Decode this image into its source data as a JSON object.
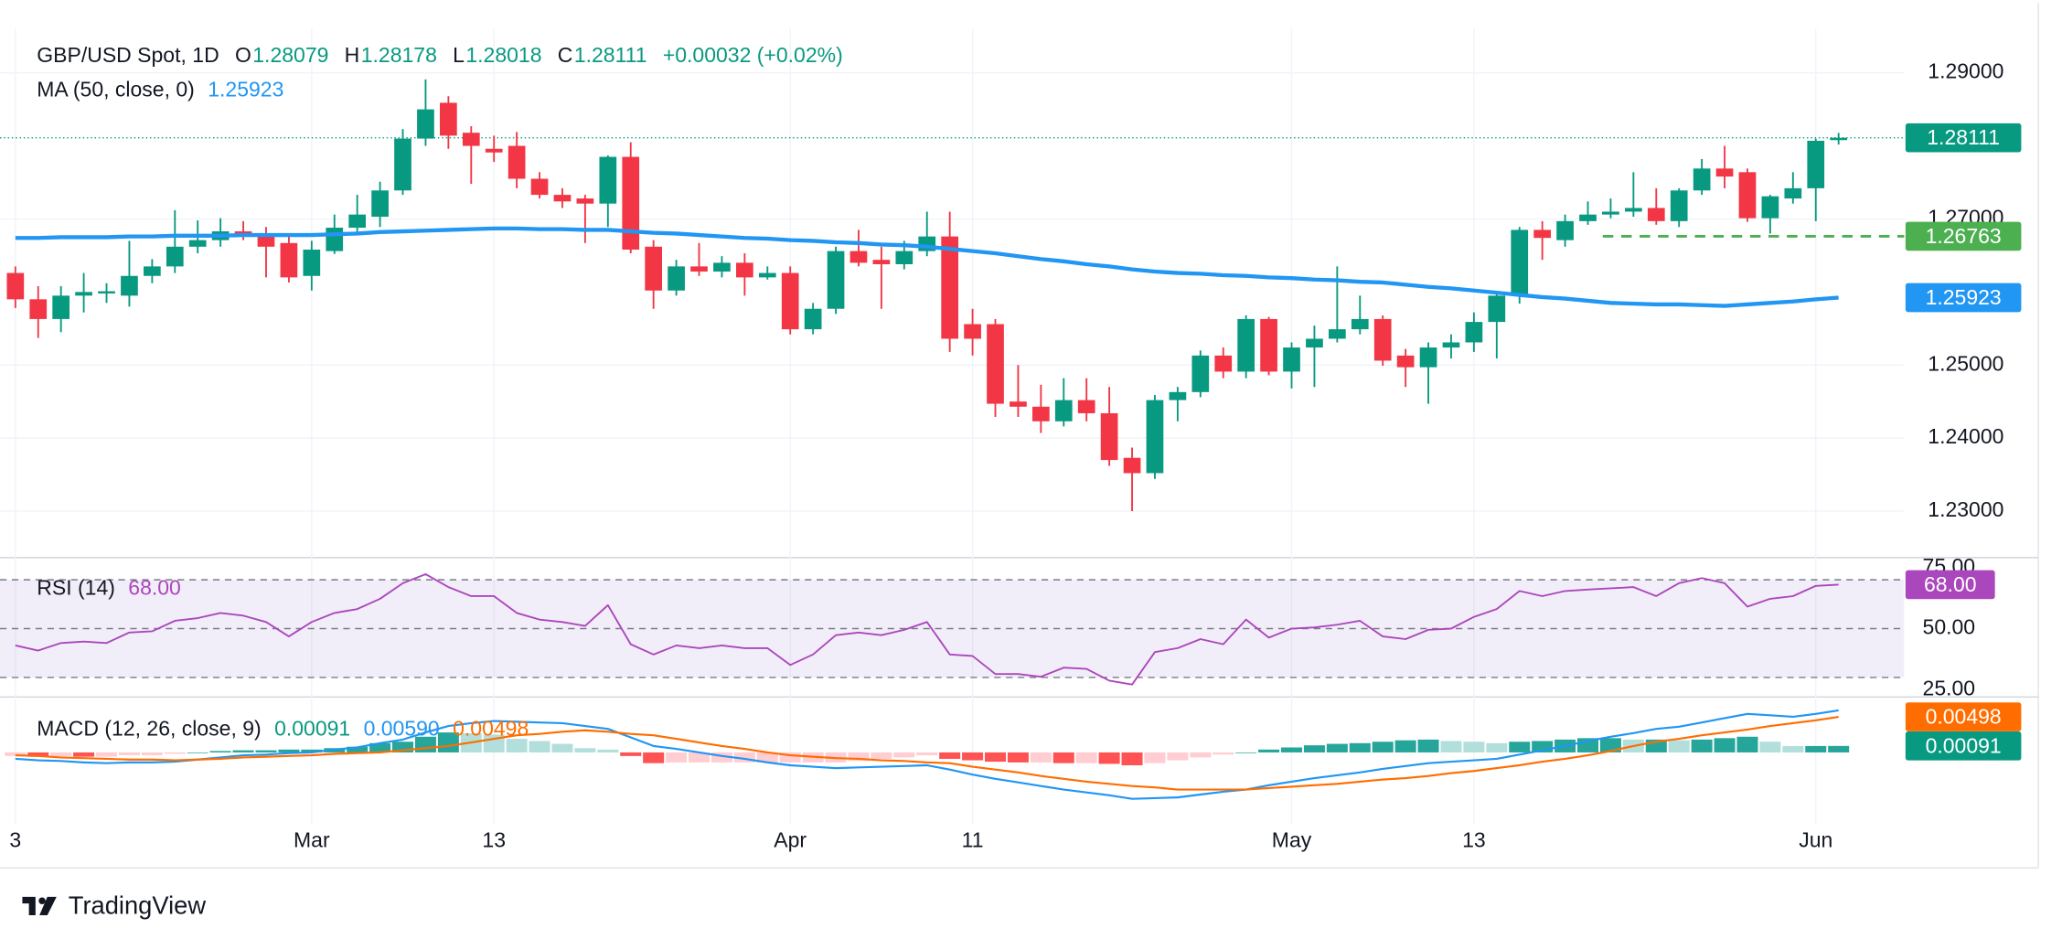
{
  "brand": "TradingView",
  "chart_data": [
    {
      "type": "candlestick",
      "title": "GBP/USD Spot, 1D",
      "ohlc_header": [
        [
          "O",
          "1.28079"
        ],
        [
          "H",
          "1.28178"
        ],
        [
          "L",
          "1.28018"
        ],
        [
          "C",
          "1.28111"
        ]
      ],
      "change": "+0.00032 (+0.02%)",
      "up_color": "#089981",
      "down_color": "#f23645",
      "categories": [
        "3",
        null,
        null,
        null,
        null,
        null,
        null,
        null,
        null,
        null,
        null,
        null,
        null,
        "Mar",
        null,
        null,
        null,
        null,
        null,
        null,
        null,
        "13",
        null,
        null,
        null,
        null,
        null,
        null,
        null,
        null,
        null,
        null,
        null,
        null,
        "Apr",
        null,
        null,
        null,
        null,
        null,
        null,
        null,
        "11",
        null,
        null,
        null,
        null,
        null,
        null,
        null,
        null,
        null,
        null,
        null,
        null,
        null,
        "May",
        null,
        null,
        null,
        null,
        null,
        null,
        null,
        "13",
        null,
        null,
        null,
        null,
        null,
        null,
        null,
        null,
        null,
        null,
        null,
        null,
        null,
        null,
        "Jun",
        null
      ],
      "ohlc": [
        [
          1.2626,
          1.2635,
          1.2578,
          1.259
        ],
        [
          1.259,
          1.2608,
          1.2537,
          1.2563
        ],
        [
          1.2563,
          1.2608,
          1.2545,
          1.2595
        ],
        [
          1.2595,
          1.2626,
          1.2572,
          1.26
        ],
        [
          1.2598,
          1.2612,
          1.2585,
          1.2601
        ],
        [
          1.2595,
          1.267,
          1.258,
          1.2622
        ],
        [
          1.2622,
          1.2645,
          1.2612,
          1.2635
        ],
        [
          1.2635,
          1.2712,
          1.2626,
          1.2662
        ],
        [
          1.2662,
          1.2698,
          1.2653,
          1.2671
        ],
        [
          1.2671,
          1.2701,
          1.2662,
          1.2683
        ],
        [
          1.2683,
          1.2697,
          1.2671,
          1.2676
        ],
        [
          1.268,
          1.2689,
          1.262,
          1.2662
        ],
        [
          1.2667,
          1.268,
          1.2613,
          1.262
        ],
        [
          1.2622,
          1.267,
          1.2602,
          1.2658
        ],
        [
          1.2656,
          1.2706,
          1.2652,
          1.2688
        ],
        [
          1.2688,
          1.2733,
          1.268,
          1.2706
        ],
        [
          1.2703,
          1.2751,
          1.2689,
          1.2739
        ],
        [
          1.2739,
          1.2823,
          1.2733,
          1.281
        ],
        [
          1.281,
          1.2891,
          1.28,
          1.285
        ],
        [
          1.2859,
          1.2868,
          1.2796,
          1.2814
        ],
        [
          1.2818,
          1.2827,
          1.2748,
          1.28
        ],
        [
          1.2796,
          1.2814,
          1.2778,
          1.2791
        ],
        [
          1.28,
          1.2819,
          1.2742,
          1.2755
        ],
        [
          1.2755,
          1.2764,
          1.2728,
          1.2733
        ],
        [
          1.2733,
          1.2742,
          1.2715,
          1.2724
        ],
        [
          1.2728,
          1.2733,
          1.2667,
          1.2721
        ],
        [
          1.2721,
          1.2787,
          1.2689,
          1.2785
        ],
        [
          1.2785,
          1.2805,
          1.2653,
          1.2658
        ],
        [
          1.2662,
          1.2671,
          1.2577,
          1.2602
        ],
        [
          1.2602,
          1.2644,
          1.2595,
          1.2635
        ],
        [
          1.2635,
          1.2667,
          1.2622,
          1.2628
        ],
        [
          1.2628,
          1.2649,
          1.262,
          1.264
        ],
        [
          1.264,
          1.2653,
          1.2595,
          1.262
        ],
        [
          1.262,
          1.2635,
          1.2617,
          1.2626
        ],
        [
          1.2626,
          1.2635,
          1.2542,
          1.2549
        ],
        [
          1.2549,
          1.2585,
          1.2542,
          1.2577
        ],
        [
          1.2577,
          1.2662,
          1.257,
          1.2656
        ],
        [
          1.2656,
          1.2685,
          1.2635,
          1.264
        ],
        [
          1.2644,
          1.2662,
          1.2577,
          1.2638
        ],
        [
          1.2638,
          1.267,
          1.2631,
          1.2656
        ],
        [
          1.2656,
          1.271,
          1.2649,
          1.2676
        ],
        [
          1.2676,
          1.271,
          1.2518,
          1.2536
        ],
        [
          1.2556,
          1.2577,
          1.2513,
          1.2536
        ],
        [
          1.2556,
          1.2563,
          1.2429,
          1.2447
        ],
        [
          1.245,
          1.25,
          1.2429,
          1.2443
        ],
        [
          1.2443,
          1.2473,
          1.2407,
          1.2423
        ],
        [
          1.2423,
          1.2482,
          1.2416,
          1.2452
        ],
        [
          1.2452,
          1.2482,
          1.2423,
          1.2434
        ],
        [
          1.2434,
          1.247,
          1.2362,
          1.237
        ],
        [
          1.2373,
          1.2387,
          1.23,
          1.2352
        ],
        [
          1.2352,
          1.2459,
          1.2344,
          1.2452
        ],
        [
          1.2452,
          1.247,
          1.2423,
          1.2463
        ],
        [
          1.2463,
          1.252,
          1.2456,
          1.2513
        ],
        [
          1.2513,
          1.2524,
          1.2482,
          1.2491
        ],
        [
          1.2491,
          1.2568,
          1.2482,
          1.2563
        ],
        [
          1.2563,
          1.2566,
          1.2486,
          1.2491
        ],
        [
          1.2491,
          1.2531,
          1.2468,
          1.2524
        ],
        [
          1.2524,
          1.2554,
          1.247,
          1.2536
        ],
        [
          1.2536,
          1.2635,
          1.2531,
          1.2549
        ],
        [
          1.2549,
          1.2595,
          1.2542,
          1.2563
        ],
        [
          1.2563,
          1.2568,
          1.2499,
          1.2506
        ],
        [
          1.2513,
          1.2522,
          1.247,
          1.2497
        ],
        [
          1.2497,
          1.2531,
          1.2447,
          1.2524
        ],
        [
          1.2524,
          1.2542,
          1.2509,
          1.2531
        ],
        [
          1.2531,
          1.2572,
          1.2518,
          1.2559
        ],
        [
          1.2559,
          1.2599,
          1.2509,
          1.2595
        ],
        [
          1.2595,
          1.2689,
          1.2584,
          1.2685
        ],
        [
          1.2685,
          1.2697,
          1.2644,
          1.2674
        ],
        [
          1.2671,
          1.2706,
          1.2662,
          1.2697
        ],
        [
          1.2697,
          1.2724,
          1.2692,
          1.2706
        ],
        [
          1.2706,
          1.2728,
          1.2701,
          1.271
        ],
        [
          1.271,
          1.2764,
          1.2703,
          1.2715
        ],
        [
          1.2715,
          1.2742,
          1.2692,
          1.2697
        ],
        [
          1.2697,
          1.2742,
          1.2689,
          1.2739
        ],
        [
          1.2739,
          1.2782,
          1.2733,
          1.2769
        ],
        [
          1.2769,
          1.28,
          1.2742,
          1.2758
        ],
        [
          1.2764,
          1.2769,
          1.2696,
          1.2701
        ],
        [
          1.2701,
          1.2733,
          1.268,
          1.2731
        ],
        [
          1.2728,
          1.2764,
          1.2721,
          1.2742
        ],
        [
          1.2742,
          1.281,
          1.2697,
          1.2807
        ],
        [
          1.28079,
          1.28178,
          1.28018,
          1.28111
        ]
      ],
      "series": [
        {
          "name": "MA (50, close, 0)",
          "color": "#2196f3",
          "values": [
            1.2674,
            1.2674,
            1.2675,
            1.2675,
            1.2675,
            1.2676,
            1.2676,
            1.2677,
            1.2677,
            1.2677,
            1.2678,
            1.2678,
            1.2678,
            1.2678,
            1.2679,
            1.268,
            1.2682,
            1.2683,
            1.2684,
            1.2685,
            1.2686,
            1.2687,
            1.2687,
            1.2686,
            1.2686,
            1.2685,
            1.2685,
            1.2683,
            1.2681,
            1.268,
            1.2678,
            1.2676,
            1.2674,
            1.2673,
            1.2671,
            1.267,
            1.2668,
            1.2667,
            1.2665,
            1.2664,
            1.2662,
            1.2659,
            1.2656,
            1.2653,
            1.2649,
            1.2645,
            1.2642,
            1.2638,
            1.2635,
            1.2631,
            1.2628,
            1.2626,
            1.2625,
            1.2623,
            1.2622,
            1.262,
            1.2619,
            1.2617,
            1.2616,
            1.2614,
            1.2613,
            1.261,
            1.2607,
            1.2605,
            1.2602,
            1.2599,
            1.2596,
            1.2593,
            1.2591,
            1.2588,
            1.2585,
            1.2584,
            1.2583,
            1.2583,
            1.2582,
            1.2581,
            1.2583,
            1.2585,
            1.2587,
            1.259,
            1.25923
          ]
        }
      ],
      "level": 1.26763,
      "level_color": "#4caf50",
      "ylim": [
        1.224,
        1.296
      ],
      "yticks": [
        {
          "value": 1.23,
          "label": "1.23000"
        },
        {
          "value": 1.24,
          "label": "1.24000"
        },
        {
          "value": 1.25,
          "label": "1.25000"
        },
        {
          "value": 1.27,
          "label": "1.27000"
        },
        {
          "value": 1.29,
          "label": "1.29000"
        }
      ],
      "grid": true
    },
    {
      "type": "rsi",
      "title": "RSI (14)",
      "legend": "68.00",
      "color": "#ab47bc",
      "values": [
        43.1,
        41.0,
        44.1,
        44.7,
        44.1,
        48.4,
        48.9,
        53.2,
        54.3,
        56.4,
        55.3,
        52.7,
        46.8,
        52.7,
        56.4,
        58.0,
        62.2,
        68.6,
        72.3,
        67.0,
        63.3,
        63.3,
        56.4,
        53.7,
        52.7,
        51.1,
        59.6,
        43.6,
        39.4,
        43.1,
        42.0,
        43.1,
        42.0,
        42.0,
        35.1,
        39.4,
        47.3,
        48.4,
        47.3,
        49.5,
        52.7,
        39.4,
        38.8,
        31.4,
        31.4,
        30.3,
        34.0,
        33.5,
        28.7,
        27.1,
        40.4,
        42.0,
        45.7,
        43.6,
        53.7,
        46.3,
        50.0,
        50.5,
        51.6,
        53.2,
        46.8,
        45.7,
        49.5,
        50.0,
        54.8,
        58.0,
        65.4,
        63.3,
        65.4,
        66.0,
        66.5,
        67.0,
        63.3,
        68.6,
        70.7,
        68.6,
        59.0,
        62.2,
        63.3,
        67.5,
        68.0
      ],
      "bands": [
        30,
        50,
        70
      ],
      "ylim": [
        22,
        78
      ],
      "yticks": [
        {
          "value": 25,
          "label": "25.00"
        },
        {
          "value": 50,
          "label": "50.00"
        },
        {
          "value": 75,
          "label": "75.00"
        }
      ]
    },
    {
      "type": "macd",
      "title": "MACD (12, 26, close, 9)",
      "legend": [
        "0.00091",
        "0.00590",
        "0.00498"
      ],
      "histogram": [
        -0.0005,
        -0.0006,
        -0.0005,
        -0.0006,
        -0.0006,
        -0.0004,
        -0.0004,
        -0.0002,
        0.0,
        0.0002,
        0.0003,
        0.0003,
        0.0004,
        0.0004,
        0.0006,
        0.0008,
        0.0013,
        0.0015,
        0.0022,
        0.0028,
        0.0027,
        0.0025,
        0.0019,
        0.0016,
        0.0012,
        0.0006,
        0.0004,
        -0.0005,
        -0.0015,
        -0.0014,
        -0.0014,
        -0.0014,
        -0.0014,
        -0.0014,
        -0.0014,
        -0.0014,
        -0.0014,
        -0.0012,
        -0.0009,
        -0.0007,
        -0.0004,
        -0.0009,
        -0.0011,
        -0.0013,
        -0.0014,
        -0.0014,
        -0.0015,
        -0.0015,
        -0.0016,
        -0.0018,
        -0.0015,
        -0.0011,
        -0.0007,
        -0.0003,
        0.0,
        0.0004,
        0.0007,
        0.001,
        0.0012,
        0.0013,
        0.0015,
        0.0017,
        0.0018,
        0.0016,
        0.0015,
        0.0013,
        0.0015,
        0.0016,
        0.0018,
        0.002,
        0.002,
        0.0018,
        0.0018,
        0.0017,
        0.0018,
        0.002,
        0.0022,
        0.0015,
        0.0009,
        0.0009,
        0.00091
      ],
      "histogram_colors": [
        "#26a69a",
        "#b2dfdb",
        "#ffcdd2",
        "#ff5252"
      ],
      "series": [
        {
          "name": "MACD",
          "color": "#2196f3",
          "values": [
            -0.0009,
            -0.0011,
            -0.0012,
            -0.0014,
            -0.0015,
            -0.0014,
            -0.0014,
            -0.0013,
            -0.001,
            -0.0007,
            -0.0004,
            -0.0003,
            -0.0001,
            0.0,
            0.0004,
            0.0007,
            0.0013,
            0.0018,
            0.0028,
            0.0037,
            0.0041,
            0.0044,
            0.0043,
            0.0042,
            0.0041,
            0.0037,
            0.0033,
            0.0021,
            0.0009,
            0.0005,
            0.0,
            -0.0005,
            -0.0009,
            -0.0014,
            -0.0018,
            -0.002,
            -0.0022,
            -0.0021,
            -0.002,
            -0.0019,
            -0.0018,
            -0.0024,
            -0.0031,
            -0.0037,
            -0.0042,
            -0.0047,
            -0.0052,
            -0.0056,
            -0.006,
            -0.0065,
            -0.0064,
            -0.0063,
            -0.0059,
            -0.0055,
            -0.0052,
            -0.0046,
            -0.0041,
            -0.0036,
            -0.0032,
            -0.0028,
            -0.0023,
            -0.0019,
            -0.0015,
            -0.0013,
            -0.0011,
            -0.0009,
            -0.0003,
            0.0003,
            0.0009,
            0.0016,
            0.0022,
            0.0027,
            0.0033,
            0.0036,
            0.0042,
            0.0048,
            0.0054,
            0.0052,
            0.005,
            0.0054,
            0.0059
          ]
        },
        {
          "name": "Signal",
          "color": "#ff6d00",
          "values": [
            -0.0004,
            -0.0005,
            -0.0007,
            -0.0008,
            -0.0009,
            -0.001,
            -0.001,
            -0.0011,
            -0.001,
            -0.0009,
            -0.0007,
            -0.0006,
            -0.0005,
            -0.0004,
            -0.0002,
            -0.0001,
            0.0,
            0.0003,
            0.0006,
            0.0009,
            0.0014,
            0.0019,
            0.0024,
            0.0026,
            0.0029,
            0.0031,
            0.0029,
            0.0026,
            0.0024,
            0.0019,
            0.0014,
            0.0009,
            0.0005,
            0.0,
            -0.0004,
            -0.0006,
            -0.0008,
            -0.0009,
            -0.0011,
            -0.0012,
            -0.0014,
            -0.0015,
            -0.002,
            -0.0024,
            -0.0028,
            -0.0033,
            -0.0037,
            -0.0041,
            -0.0044,
            -0.0047,
            -0.0049,
            -0.0052,
            -0.0052,
            -0.0052,
            -0.0052,
            -0.005,
            -0.0048,
            -0.0046,
            -0.0044,
            -0.0041,
            -0.0038,
            -0.0036,
            -0.0033,
            -0.0029,
            -0.0026,
            -0.0022,
            -0.0018,
            -0.0013,
            -0.0009,
            -0.0004,
            0.0002,
            0.0009,
            0.0015,
            0.0019,
            0.0024,
            0.0028,
            0.0032,
            0.0037,
            0.0041,
            0.0045,
            0.00498
          ]
        }
      ],
      "ylim": [
        -0.0101,
        0.0074
      ]
    }
  ]
}
